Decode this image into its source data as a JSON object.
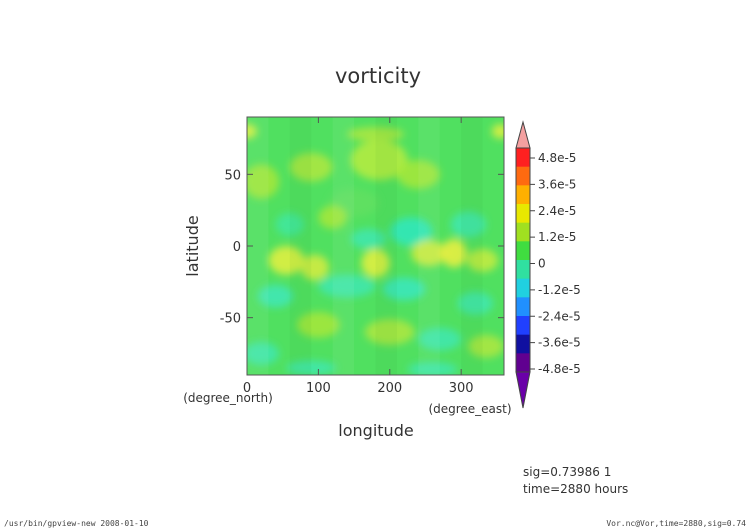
{
  "chart_data": {
    "type": "heatmap",
    "title": "vorticity",
    "xlabel": "longitude",
    "ylabel": "latitude",
    "x_unit": "(degree_east)",
    "y_unit": "(degree_north)",
    "xlim": [
      0,
      360
    ],
    "ylim": [
      -90,
      90
    ],
    "x_ticks": [
      0,
      100,
      200,
      300
    ],
    "y_ticks": [
      50,
      0,
      -50
    ],
    "colorbar": {
      "labels": [
        "4.8e-5",
        "3.6e-5",
        "2.4e-5",
        "1.2e-5",
        "0",
        "-1.2e-5",
        "-2.4e-5",
        "-3.6e-5",
        "-4.8e-5"
      ],
      "values": [
        4.8e-05,
        3.6e-05,
        2.4e-05,
        1.2e-05,
        0,
        -1.2e-05,
        -2.4e-05,
        -3.6e-05,
        -4.8e-05
      ],
      "over_color": "#f4a0a0",
      "under_color": "#6a00a8",
      "colors_top_to_bottom": [
        "#ff2020",
        "#ff6a10",
        "#ffb000",
        "#e8e800",
        "#a0e020",
        "#40dd40",
        "#30e0a0",
        "#20d0e0",
        "#2090ff",
        "#2040ff",
        "#1010a0",
        "#600090"
      ]
    },
    "field_note": "mostly near-zero (green) vorticity with small positive (yellow) and negative (cyan) swirls"
  },
  "info": {
    "sig": "sig=0.73986 1",
    "time": "time=2880 hours"
  },
  "footer": {
    "left": "/usr/bin/gpview-new  2008-01-10",
    "right": "Vor.nc@Vor,time=2880,sig=0.74"
  }
}
